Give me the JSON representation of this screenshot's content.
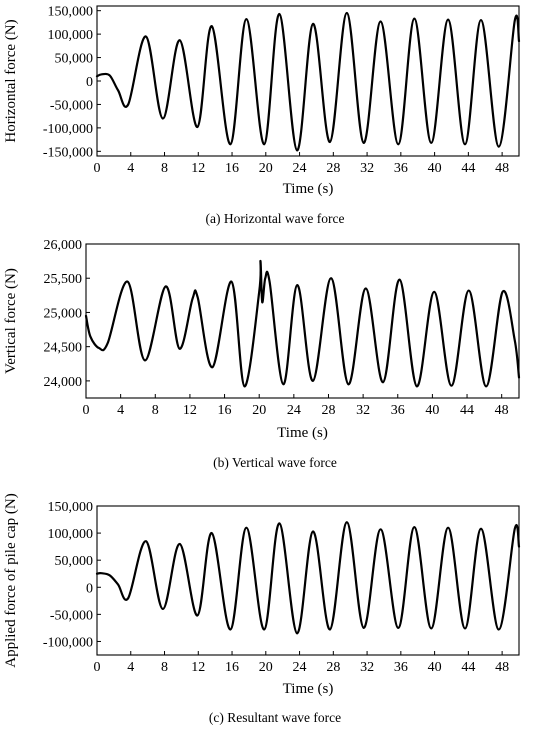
{
  "chart_data": [
    {
      "type": "line",
      "caption": "(a) Horizontal wave force",
      "xlabel": "Time (s)",
      "ylabel": "Horizontal force (N)",
      "xlim": [
        0,
        50
      ],
      "ylim": [
        -160000,
        160000
      ],
      "xticks": [
        0,
        4,
        8,
        12,
        16,
        20,
        24,
        28,
        32,
        36,
        40,
        44,
        48
      ],
      "yticks": [
        -150000,
        -100000,
        -50000,
        0,
        50000,
        100000,
        150000
      ],
      "ytick_labels": [
        "-150,000",
        "-100,000",
        "-50,000",
        "0",
        "50,000",
        "100,000",
        "150,000"
      ],
      "series": [
        {
          "color": "#000000",
          "x": [
            0,
            0.5,
            1.5,
            2.5,
            3.7,
            5.8,
            7.8,
            9.8,
            11.9,
            13.6,
            15.8,
            17.7,
            19.8,
            21.6,
            23.7,
            25.6,
            27.6,
            29.6,
            31.6,
            33.6,
            35.7,
            37.6,
            39.6,
            41.6,
            43.6,
            45.5,
            47.6,
            49.5,
            50
          ],
          "y": [
            10000,
            14000,
            12000,
            -20000,
            -50000,
            95000,
            -80000,
            87000,
            -98000,
            117000,
            -135000,
            132000,
            -135000,
            143000,
            -148000,
            122000,
            -130000,
            145000,
            -132000,
            127000,
            -135000,
            133000,
            -132000,
            131000,
            -135000,
            130000,
            -140000,
            129000,
            85000
          ]
        }
      ]
    },
    {
      "type": "line",
      "caption": "(b) Vertical wave force",
      "xlabel": "Time (s)",
      "ylabel": "Vertical force (N)",
      "xlim": [
        0,
        50
      ],
      "ylim": [
        23750,
        26000
      ],
      "xticks": [
        0,
        4,
        8,
        12,
        16,
        20,
        24,
        28,
        32,
        36,
        40,
        44,
        48
      ],
      "yticks": [
        24000,
        24500,
        25000,
        25500,
        26000
      ],
      "ytick_labels": [
        "24,000",
        "24,500",
        "25,000",
        "25,500",
        "26,000"
      ],
      "series": [
        {
          "color": "#000000",
          "x": [
            0,
            0.5,
            1.5,
            2.5,
            4.8,
            6.8,
            9.2,
            10.8,
            12.3,
            12.9,
            14.6,
            16.8,
            18.3,
            20.0,
            20.15,
            20.35,
            20.7,
            21.2,
            22.8,
            24.4,
            26.2,
            28.3,
            30.3,
            32.3,
            34.3,
            36.2,
            38.2,
            40.2,
            42.2,
            44.2,
            46.2,
            48.1,
            49.5,
            50
          ],
          "y": [
            24950,
            24650,
            24480,
            24550,
            25450,
            24300,
            25380,
            24470,
            25200,
            25220,
            24200,
            25450,
            23920,
            25300,
            25750,
            25150,
            25500,
            25450,
            23950,
            25400,
            24000,
            25500,
            23950,
            25350,
            23980,
            25480,
            23920,
            25300,
            23930,
            25320,
            23920,
            25300,
            24600,
            24050
          ]
        }
      ]
    },
    {
      "type": "line",
      "caption": "(c) Resultant wave force",
      "xlabel": "Time (s)",
      "ylabel": "Applied force of pile cap (N)",
      "xlim": [
        0,
        50
      ],
      "ylim": [
        -125000,
        150000
      ],
      "xticks": [
        0,
        4,
        8,
        12,
        16,
        20,
        24,
        28,
        32,
        36,
        40,
        44,
        48
      ],
      "yticks": [
        -100000,
        -50000,
        0,
        50000,
        100000,
        150000
      ],
      "ytick_labels": [
        "-100,000",
        "-50,000",
        "0",
        "50,000",
        "100,000",
        "150,000"
      ],
      "series": [
        {
          "color": "#000000",
          "x": [
            0,
            0.5,
            1.5,
            2.5,
            3.7,
            5.8,
            7.8,
            9.8,
            11.9,
            13.6,
            15.8,
            17.7,
            19.8,
            21.6,
            23.7,
            25.6,
            27.6,
            29.6,
            31.6,
            33.6,
            35.7,
            37.6,
            39.6,
            41.6,
            43.6,
            45.5,
            47.6,
            49.5,
            50
          ],
          "y": [
            25000,
            26000,
            22000,
            5000,
            -20000,
            85000,
            -40000,
            80000,
            -52000,
            100000,
            -78000,
            110000,
            -78000,
            118000,
            -85000,
            103000,
            -78000,
            120000,
            -75000,
            107000,
            -75000,
            111000,
            -76000,
            110000,
            -76000,
            108000,
            -78000,
            108000,
            75000
          ]
        }
      ]
    }
  ]
}
